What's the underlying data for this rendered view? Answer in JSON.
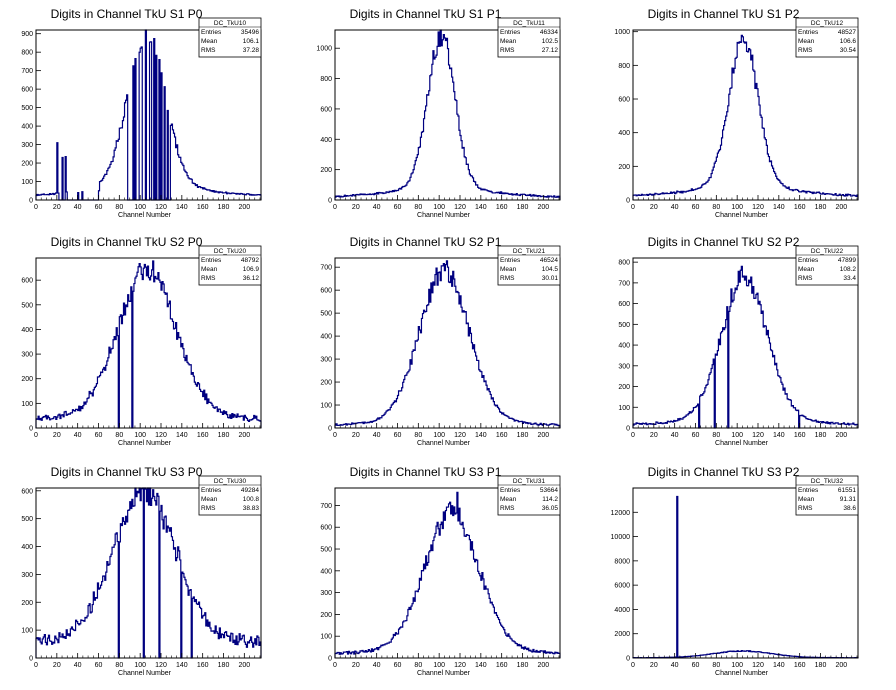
{
  "chart_data": [
    {
      "type": "histogram",
      "title": "Digits in Channel TkU S1 P0",
      "xlabel": "Channel Number",
      "ylabel": "",
      "xlim": [
        0,
        216
      ],
      "ylim": [
        0,
        920
      ],
      "xticks": [
        0,
        20,
        40,
        60,
        80,
        100,
        120,
        140,
        160,
        180,
        200
      ],
      "yticks": [
        0,
        100,
        200,
        300,
        400,
        500,
        600,
        700,
        800,
        900
      ],
      "stats": {
        "name": "DC_TkU10",
        "entries": "35496",
        "mean": "106.1",
        "rms": "37.28"
      },
      "curve": {
        "mean": 106,
        "sigma": 18,
        "peak": 780,
        "tail": 115,
        "tailRate": 0.017,
        "base": 8
      },
      "spikes": [
        [
          20,
          310
        ],
        [
          25,
          230
        ],
        [
          28,
          235
        ],
        [
          40,
          40
        ],
        [
          44,
          45
        ],
        [
          60,
          50
        ]
      ],
      "gaps": [
        22,
        23,
        24,
        26,
        27,
        30,
        31,
        32,
        33,
        34,
        35,
        36,
        37,
        38,
        39,
        41,
        42,
        43,
        45,
        46,
        47,
        48,
        49,
        50,
        51,
        52,
        53,
        54,
        55,
        56,
        57,
        58,
        59,
        88,
        89,
        90,
        91,
        92,
        94,
        96,
        97,
        98,
        102,
        103,
        104,
        106,
        107,
        108,
        111,
        112,
        114,
        116,
        117,
        119,
        121,
        122,
        124,
        125,
        127,
        128
      ]
    },
    {
      "type": "histogram",
      "title": "Digits in Channel TkU S1 P1",
      "xlabel": "Channel Number",
      "ylabel": "",
      "xlim": [
        0,
        216
      ],
      "ylim": [
        0,
        1120
      ],
      "xticks": [
        0,
        20,
        40,
        60,
        80,
        100,
        120,
        140,
        160,
        180,
        200
      ],
      "yticks": [
        0,
        200,
        400,
        600,
        800,
        1000
      ],
      "stats": {
        "name": "DC_TkU11",
        "entries": "46334",
        "mean": "102.5",
        "rms": "27.12"
      },
      "curve": {
        "mean": 102,
        "sigma": 13,
        "peak": 960,
        "tail": 120,
        "tailRate": 0.022,
        "base": 12
      },
      "spikes": [],
      "gaps": []
    },
    {
      "type": "histogram",
      "title": "Digits in Channel TkU S1 P2",
      "xlabel": "Channel Number",
      "ylabel": "",
      "xlim": [
        0,
        216
      ],
      "ylim": [
        0,
        1010
      ],
      "xticks": [
        0,
        20,
        40,
        60,
        80,
        100,
        120,
        140,
        160,
        180,
        200
      ],
      "yticks": [
        0,
        200,
        400,
        600,
        800,
        1000
      ],
      "stats": {
        "name": "DC_TkU12",
        "entries": "48527",
        "mean": "106.6",
        "rms": "30.54"
      },
      "curve": {
        "mean": 106,
        "sigma": 14,
        "peak": 830,
        "tail": 120,
        "tailRate": 0.02,
        "base": 12
      },
      "spikes": [],
      "gaps": []
    },
    {
      "type": "histogram",
      "title": "Digits in Channel TkU S2 P0",
      "xlabel": "Channel Number",
      "ylabel": "",
      "xlim": [
        0,
        216
      ],
      "ylim": [
        0,
        690
      ],
      "xticks": [
        0,
        20,
        40,
        60,
        80,
        100,
        120,
        140,
        160,
        180,
        200
      ],
      "yticks": [
        0,
        100,
        200,
        300,
        400,
        500,
        600
      ],
      "stats": {
        "name": "DC_TkU20",
        "entries": "48792",
        "mean": "106.9",
        "rms": "36.12"
      },
      "curve": {
        "mean": 107,
        "sigma": 28,
        "peak": 560,
        "tail": 60,
        "tailRate": 0.02,
        "base": 30
      },
      "spikes": [],
      "gaps": [
        79,
        92
      ]
    },
    {
      "type": "histogram",
      "title": "Digits in Channel TkU S2 P1",
      "xlabel": "Channel Number",
      "ylabel": "",
      "xlim": [
        0,
        216
      ],
      "ylim": [
        0,
        740
      ],
      "xticks": [
        0,
        20,
        40,
        60,
        80,
        100,
        120,
        140,
        160,
        180,
        200
      ],
      "yticks": [
        0,
        100,
        200,
        300,
        400,
        500,
        600,
        700
      ],
      "stats": {
        "name": "DC_TkU21",
        "entries": "46524",
        "mean": "104.5",
        "rms": "30.01"
      },
      "curve": {
        "mean": 105,
        "sigma": 24,
        "peak": 620,
        "tail": 60,
        "tailRate": 0.025,
        "base": 10
      },
      "spikes": [],
      "gaps": []
    },
    {
      "type": "histogram",
      "title": "Digits in Channel TkU S2 P2",
      "xlabel": "Channel Number",
      "ylabel": "",
      "xlim": [
        0,
        216
      ],
      "ylim": [
        0,
        820
      ],
      "xticks": [
        0,
        20,
        40,
        60,
        80,
        100,
        120,
        140,
        160,
        180,
        200
      ],
      "yticks": [
        0,
        100,
        200,
        300,
        400,
        500,
        600,
        700,
        800
      ],
      "stats": {
        "name": "DC_TkU22",
        "entries": "47899",
        "mean": "108.2",
        "rms": "33.4"
      },
      "curve": {
        "mean": 107,
        "sigma": 22,
        "peak": 660,
        "tail": 70,
        "tailRate": 0.022,
        "base": 12
      },
      "spikes": [
        [
          104,
          780
        ]
      ],
      "gaps": [
        63,
        78,
        91,
        159
      ]
    },
    {
      "type": "histogram",
      "title": "Digits in Channel TkU S3 P0",
      "xlabel": "Channel Number",
      "ylabel": "",
      "xlim": [
        0,
        216
      ],
      "ylim": [
        0,
        610
      ],
      "xticks": [
        0,
        20,
        40,
        60,
        80,
        100,
        120,
        140,
        160,
        180,
        200
      ],
      "yticks": [
        0,
        100,
        200,
        300,
        400,
        500,
        600
      ],
      "stats": {
        "name": "DC_TkU30",
        "entries": "49284",
        "mean": "100.8",
        "rms": "38.83"
      },
      "curve": {
        "mean": 104,
        "sigma": 30,
        "peak": 500,
        "tail": 60,
        "tailRate": 0.02,
        "base": 50
      },
      "spikes": [],
      "gaps": [
        79,
        103,
        118,
        139,
        149
      ]
    },
    {
      "type": "histogram",
      "title": "Digits in Channel TkU S3 P1",
      "xlabel": "Channel Number",
      "ylabel": "",
      "xlim": [
        0,
        216
      ],
      "ylim": [
        0,
        780
      ],
      "xticks": [
        0,
        20,
        40,
        60,
        80,
        100,
        120,
        140,
        160,
        180,
        200
      ],
      "yticks": [
        0,
        100,
        200,
        300,
        400,
        500,
        600,
        700
      ],
      "stats": {
        "name": "DC_TkU31",
        "entries": "53664",
        "mean": "114.2",
        "rms": "36.05"
      },
      "curve": {
        "mean": 112,
        "sigma": 26,
        "peak": 600,
        "tail": 60,
        "tailRate": 0.02,
        "base": 15
      },
      "spikes": [
        [
          117,
          760
        ]
      ],
      "gaps": []
    },
    {
      "type": "histogram",
      "title": "Digits in Channel TkU S3 P2",
      "xlabel": "Channel Number",
      "ylabel": "",
      "xlim": [
        0,
        216
      ],
      "ylim": [
        0,
        14000
      ],
      "xticks": [
        0,
        20,
        40,
        60,
        80,
        100,
        120,
        140,
        160,
        180,
        200
      ],
      "yticks": [
        0,
        2000,
        4000,
        6000,
        8000,
        10000,
        12000
      ],
      "stats": {
        "name": "DC_TkU32",
        "entries": "61551",
        "mean": "91.31",
        "rms": "38.6"
      },
      "curve": {
        "mean": 105,
        "sigma": 28,
        "peak": 520,
        "tail": 40,
        "tailRate": 0.02,
        "base": 20
      },
      "spikes": [
        [
          42,
          13300
        ]
      ],
      "gaps": []
    }
  ],
  "labels": {
    "entries": "Entries",
    "mean": "Mean",
    "rms": "RMS"
  },
  "colors": {
    "line": "#000080",
    "axis": "#000000",
    "background": "#ffffff"
  }
}
